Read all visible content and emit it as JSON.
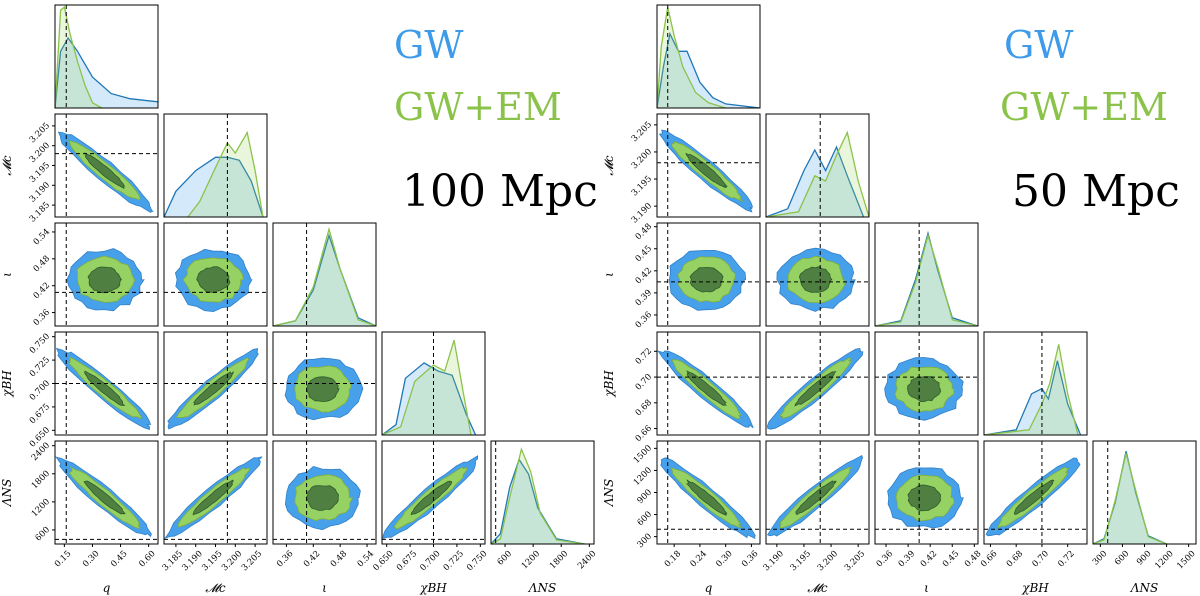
{
  "colors": {
    "gw": "#1f77b4",
    "gw_fill": "#3d9be9",
    "em": "#8bc34a",
    "em_fill": "#9bd45c",
    "dark": "#3d6b3a",
    "ref": "#000000"
  },
  "chart_data": [
    {
      "type": "corner",
      "title": "100 Mpc",
      "legend": [
        "GW",
        "GW+EM"
      ],
      "parameters": [
        {
          "key": "q",
          "label": "q",
          "range": [
            0.1,
            0.65
          ],
          "ticks": [
            "0.15",
            "0.30",
            "0.45",
            "0.60"
          ],
          "tickvals": [
            0.15,
            0.3,
            0.45,
            0.6
          ],
          "truth": 0.16
        },
        {
          "key": "Mc",
          "label": "𝓜c",
          "range": [
            3.182,
            3.208
          ],
          "ticks": [
            "3.185",
            "3.190",
            "3.195",
            "3.200",
            "3.205"
          ],
          "tickvals": [
            3.185,
            3.19,
            3.195,
            3.2,
            3.205
          ],
          "truth": 3.198
        },
        {
          "key": "iota",
          "label": "ι",
          "range": [
            0.33,
            0.56
          ],
          "ticks": [
            "0.36",
            "0.42",
            "0.48",
            "0.54"
          ],
          "tickvals": [
            0.36,
            0.42,
            0.48,
            0.54
          ],
          "truth": 0.405
        },
        {
          "key": "chiBH",
          "label": "χBH",
          "range": [
            0.645,
            0.755
          ],
          "ticks": [
            "0.650",
            "0.675",
            "0.700",
            "0.725",
            "0.750"
          ],
          "tickvals": [
            0.65,
            0.675,
            0.7,
            0.725,
            0.75
          ],
          "truth": 0.7
        },
        {
          "key": "LambdaNS",
          "label": "ΛNS",
          "range": [
            300,
            2500
          ],
          "ticks": [
            "600",
            "1200",
            "1800",
            "2400"
          ],
          "tickvals": [
            600,
            1200,
            1800,
            2400
          ],
          "truth": 400
        }
      ],
      "marginals": {
        "q": {
          "gw": [
            [
              0.1,
              0
            ],
            [
              0.13,
              0.55
            ],
            [
              0.17,
              0.68
            ],
            [
              0.22,
              0.55
            ],
            [
              0.3,
              0.3
            ],
            [
              0.4,
              0.14
            ],
            [
              0.5,
              0.09
            ],
            [
              0.6,
              0.07
            ],
            [
              0.65,
              0.06
            ]
          ],
          "em": [
            [
              0.1,
              0
            ],
            [
              0.13,
              0.95
            ],
            [
              0.15,
              0.98
            ],
            [
              0.18,
              0.72
            ],
            [
              0.22,
              0.45
            ],
            [
              0.26,
              0.22
            ],
            [
              0.3,
              0.05
            ],
            [
              0.35,
              0.0
            ]
          ]
        },
        "Mc": {
          "gw": [
            [
              3.182,
              0
            ],
            [
              3.185,
              0.25
            ],
            [
              3.19,
              0.45
            ],
            [
              3.195,
              0.58
            ],
            [
              3.198,
              0.58
            ],
            [
              3.201,
              0.55
            ],
            [
              3.204,
              0.35
            ],
            [
              3.207,
              0.0
            ]
          ],
          "em": [
            [
              3.188,
              0
            ],
            [
              3.191,
              0.15
            ],
            [
              3.195,
              0.48
            ],
            [
              3.198,
              0.72
            ],
            [
              3.2,
              0.62
            ],
            [
              3.203,
              0.82
            ],
            [
              3.205,
              0.45
            ],
            [
              3.207,
              0.0
            ]
          ]
        },
        "iota": {
          "gw": [
            [
              0.33,
              0
            ],
            [
              0.38,
              0.05
            ],
            [
              0.42,
              0.35
            ],
            [
              0.455,
              0.88
            ],
            [
              0.48,
              0.55
            ],
            [
              0.52,
              0.08
            ],
            [
              0.56,
              0
            ]
          ],
          "em": [
            [
              0.33,
              0
            ],
            [
              0.38,
              0.05
            ],
            [
              0.42,
              0.38
            ],
            [
              0.455,
              0.94
            ],
            [
              0.48,
              0.55
            ],
            [
              0.52,
              0.06
            ],
            [
              0.56,
              0
            ]
          ]
        },
        "chiBH": {
          "gw": [
            [
              0.645,
              0
            ],
            [
              0.66,
              0.1
            ],
            [
              0.67,
              0.55
            ],
            [
              0.69,
              0.7
            ],
            [
              0.705,
              0.62
            ],
            [
              0.72,
              0.58
            ],
            [
              0.735,
              0.2
            ],
            [
              0.745,
              0
            ]
          ],
          "em": [
            [
              0.645,
              0
            ],
            [
              0.665,
              0.08
            ],
            [
              0.68,
              0.52
            ],
            [
              0.7,
              0.68
            ],
            [
              0.712,
              0.62
            ],
            [
              0.722,
              0.92
            ],
            [
              0.732,
              0.4
            ],
            [
              0.74,
              0
            ]
          ]
        },
        "LambdaNS": {
          "gw": [
            [
              300,
              0
            ],
            [
              500,
              0.1
            ],
            [
              700,
              0.55
            ],
            [
              900,
              0.82
            ],
            [
              1100,
              0.68
            ],
            [
              1300,
              0.35
            ],
            [
              1700,
              0.05
            ],
            [
              2300,
              0
            ]
          ],
          "em": [
            [
              300,
              0
            ],
            [
              500,
              0.05
            ],
            [
              700,
              0.45
            ],
            [
              950,
              0.92
            ],
            [
              1150,
              0.7
            ],
            [
              1350,
              0.3
            ],
            [
              1700,
              0.04
            ],
            [
              2300,
              0
            ]
          ]
        }
      }
    },
    {
      "type": "corner",
      "title": "50 Mpc",
      "legend": [
        "GW",
        "GW+EM"
      ],
      "parameters": [
        {
          "key": "q",
          "label": "q",
          "range": [
            0.14,
            0.38
          ],
          "ticks": [
            "0.18",
            "0.24",
            "0.30",
            "0.36"
          ],
          "tickvals": [
            0.18,
            0.24,
            0.3,
            0.36
          ],
          "truth": 0.165
        },
        {
          "key": "Mc",
          "label": "𝓜c",
          "range": [
            3.188,
            3.207
          ],
          "ticks": [
            "3.190",
            "3.195",
            "3.200",
            "3.205"
          ],
          "tickvals": [
            3.19,
            3.195,
            3.2,
            3.205
          ],
          "truth": 3.198
        },
        {
          "key": "iota",
          "label": "ι",
          "range": [
            0.345,
            0.485
          ],
          "ticks": [
            "0.36",
            "0.39",
            "0.42",
            "0.45",
            "0.48"
          ],
          "tickvals": [
            0.36,
            0.39,
            0.42,
            0.45,
            0.48
          ],
          "truth": 0.405
        },
        {
          "key": "chiBH",
          "label": "χBH",
          "range": [
            0.655,
            0.735
          ],
          "ticks": [
            "0.66",
            "0.68",
            "0.70",
            "0.72"
          ],
          "tickvals": [
            0.66,
            0.68,
            0.7,
            0.72
          ],
          "truth": 0.7
        },
        {
          "key": "LambdaNS",
          "label": "ΛNS",
          "range": [
            200,
            1600
          ],
          "ticks": [
            "300",
            "600",
            "900",
            "1200",
            "1500"
          ],
          "tickvals": [
            300,
            600,
            900,
            1200,
            1500
          ],
          "truth": 400
        }
      ],
      "marginals": {
        "q": {
          "gw": [
            [
              0.14,
              0
            ],
            [
              0.155,
              0.4
            ],
            [
              0.17,
              0.72
            ],
            [
              0.19,
              0.55
            ],
            [
              0.21,
              0.55
            ],
            [
              0.24,
              0.25
            ],
            [
              0.27,
              0.1
            ],
            [
              0.3,
              0.04
            ],
            [
              0.38,
              0
            ]
          ],
          "em": [
            [
              0.14,
              0
            ],
            [
              0.15,
              0.6
            ],
            [
              0.165,
              0.98
            ],
            [
              0.18,
              0.7
            ],
            [
              0.2,
              0.4
            ],
            [
              0.23,
              0.15
            ],
            [
              0.26,
              0.05
            ],
            [
              0.3,
              0
            ]
          ]
        },
        "Mc": {
          "gw": [
            [
              3.188,
              0
            ],
            [
              3.192,
              0.08
            ],
            [
              3.195,
              0.45
            ],
            [
              3.197,
              0.65
            ],
            [
              3.199,
              0.45
            ],
            [
              3.201,
              0.68
            ],
            [
              3.203,
              0.4
            ],
            [
              3.206,
              0
            ]
          ],
          "em": [
            [
              3.188,
              0
            ],
            [
              3.194,
              0.05
            ],
            [
              3.197,
              0.4
            ],
            [
              3.199,
              0.35
            ],
            [
              3.201,
              0.6
            ],
            [
              3.203,
              0.82
            ],
            [
              3.205,
              0.35
            ],
            [
              3.207,
              0
            ]
          ]
        },
        "iota": {
          "gw": [
            [
              0.345,
              0
            ],
            [
              0.38,
              0.05
            ],
            [
              0.4,
              0.45
            ],
            [
              0.417,
              0.9
            ],
            [
              0.43,
              0.55
            ],
            [
              0.45,
              0.08
            ],
            [
              0.485,
              0
            ]
          ],
          "em": [
            [
              0.345,
              0
            ],
            [
              0.38,
              0.04
            ],
            [
              0.4,
              0.42
            ],
            [
              0.417,
              0.88
            ],
            [
              0.43,
              0.58
            ],
            [
              0.45,
              0.06
            ],
            [
              0.485,
              0
            ]
          ]
        },
        "chiBH": {
          "gw": [
            [
              0.655,
              0
            ],
            [
              0.68,
              0.05
            ],
            [
              0.692,
              0.4
            ],
            [
              0.7,
              0.45
            ],
            [
              0.705,
              0.35
            ],
            [
              0.712,
              0.72
            ],
            [
              0.72,
              0.3
            ],
            [
              0.73,
              0
            ]
          ],
          "em": [
            [
              0.655,
              0
            ],
            [
              0.69,
              0.05
            ],
            [
              0.7,
              0.3
            ],
            [
              0.706,
              0.5
            ],
            [
              0.713,
              0.88
            ],
            [
              0.72,
              0.4
            ],
            [
              0.728,
              0
            ]
          ]
        },
        "LambdaNS": {
          "gw": [
            [
              200,
              0
            ],
            [
              350,
              0.05
            ],
            [
              500,
              0.4
            ],
            [
              650,
              0.9
            ],
            [
              780,
              0.5
            ],
            [
              950,
              0.08
            ],
            [
              1200,
              0
            ]
          ],
          "em": [
            [
              200,
              0
            ],
            [
              350,
              0.04
            ],
            [
              500,
              0.42
            ],
            [
              650,
              0.88
            ],
            [
              780,
              0.52
            ],
            [
              950,
              0.07
            ],
            [
              1200,
              0
            ]
          ]
        }
      }
    }
  ]
}
